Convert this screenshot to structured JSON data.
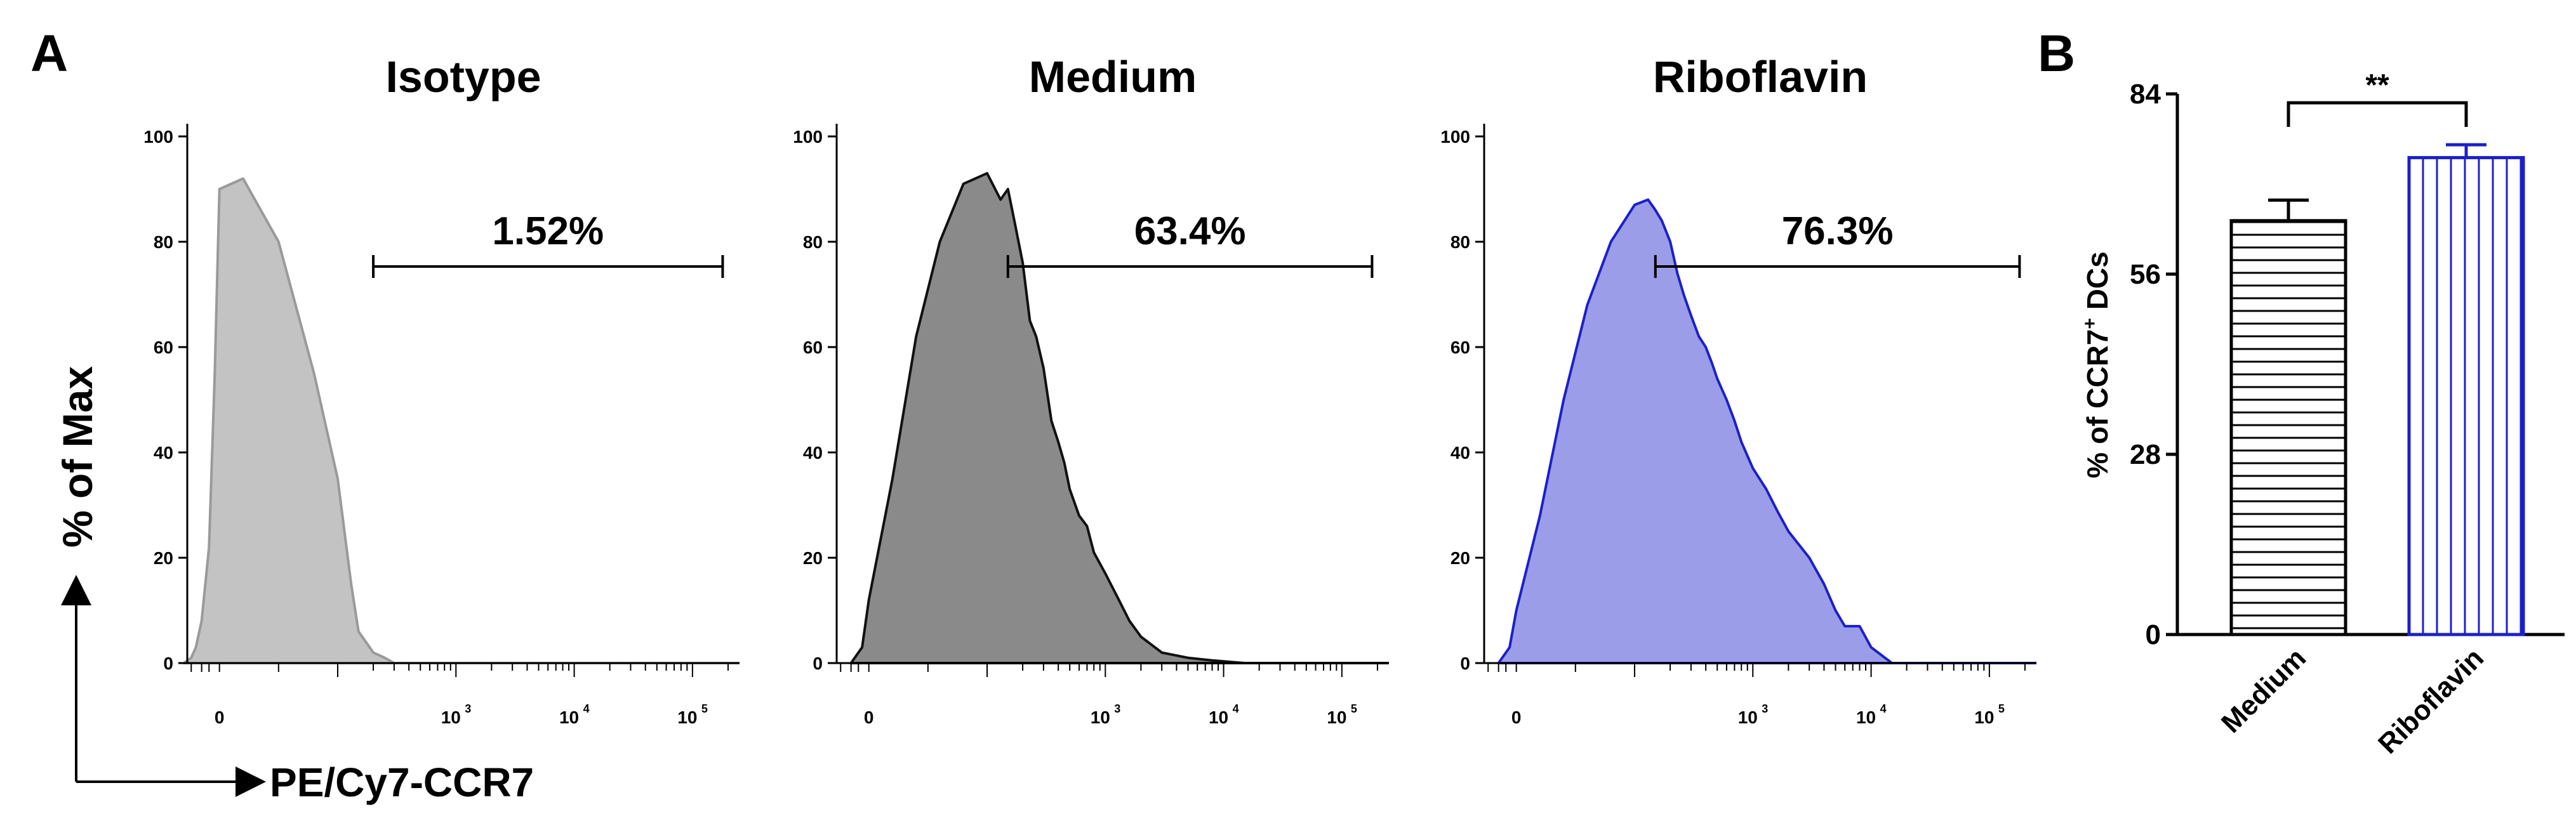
{
  "panel_labels": {
    "a": "A",
    "b": "B"
  },
  "histogram_axes": {
    "y_title": "% of Max",
    "x_title": "PE/Cy7-CCR7",
    "y_ticks": [
      "0",
      "20",
      "40",
      "60",
      "80",
      "100"
    ],
    "x_tick_zero": "0",
    "x_tick_base": "10",
    "x_tick_exps": [
      "3",
      "4",
      "5"
    ]
  },
  "bar_axes": {
    "y_title": "% of CCR7",
    "y_title_sup": "+",
    "y_title_suffix": " DCs",
    "y_ticks": [
      "0",
      "28",
      "56",
      "84"
    ],
    "significance": "**"
  },
  "colors": {
    "isotype_fill": "#c3c3c3",
    "isotype_line": "#9a9a9a",
    "medium_fill": "#8a8a8a",
    "medium_line": "#111111",
    "riboflavin_fill": "#9b9de9",
    "riboflavin_line": "#1c20c8",
    "bar_medium": "#000000",
    "bar_riboflavin": "#1c20c8"
  },
  "chart_data": [
    {
      "type": "area",
      "title": "Isotype",
      "gate_label": "1.52%",
      "gate_range": [
        200,
        180000
      ],
      "x_scale": "biexponential",
      "ylim": [
        0,
        100
      ],
      "x": [
        -300,
        -200,
        -150,
        -100,
        -50,
        -20,
        0,
        20,
        50,
        80,
        100,
        130,
        150,
        200,
        250,
        300
      ],
      "y": [
        0,
        1,
        3,
        8,
        22,
        55,
        90,
        92,
        80,
        55,
        35,
        15,
        6,
        2,
        1,
        0
      ]
    },
    {
      "type": "area",
      "title": "Medium",
      "gate_label": "63.4%",
      "gate_range": [
        150,
        180000
      ],
      "x_scale": "biexponential",
      "ylim": [
        0,
        100
      ],
      "x": [
        -100,
        -30,
        0,
        20,
        40,
        60,
        80,
        100,
        130,
        150,
        170,
        200,
        230,
        260,
        300,
        350,
        400,
        450,
        500,
        600,
        700,
        800,
        1000,
        1300,
        1600,
        2000,
        3000,
        5000,
        8000,
        15000
      ],
      "y": [
        0,
        3,
        12,
        35,
        62,
        80,
        91,
        93,
        88,
        90,
        84,
        76,
        65,
        62,
        56,
        46,
        42,
        38,
        33,
        28,
        26,
        21,
        17,
        12,
        8,
        5,
        2,
        1,
        0.5,
        0
      ]
    },
    {
      "type": "area",
      "title": "Riboflavin",
      "gate_label": "76.3%",
      "gate_range": [
        150,
        180000
      ],
      "x_scale": "biexponential",
      "ylim": [
        0,
        100
      ],
      "x": [
        -100,
        -30,
        0,
        20,
        40,
        60,
        80,
        100,
        130,
        150,
        170,
        200,
        230,
        260,
        300,
        350,
        400,
        450,
        500,
        600,
        700,
        800,
        1000,
        1300,
        1600,
        2000,
        3000,
        4000,
        5000,
        6000,
        8000,
        10000,
        15000
      ],
      "y": [
        0,
        3,
        10,
        28,
        50,
        68,
        80,
        87,
        88,
        86,
        84,
        80,
        74,
        70,
        66,
        62,
        60,
        57,
        54,
        50,
        46,
        42,
        37,
        33,
        29,
        25,
        20,
        15,
        10,
        7,
        7,
        3,
        0
      ]
    },
    {
      "type": "bar",
      "categories": [
        "Medium",
        "Riboflavin"
      ],
      "values": [
        64.3,
        74.1
      ],
      "errors": [
        3.2,
        2.0
      ],
      "ylim": [
        0,
        84
      ],
      "ylabel": "% of CCR7+ DCs",
      "significance": "**"
    }
  ]
}
